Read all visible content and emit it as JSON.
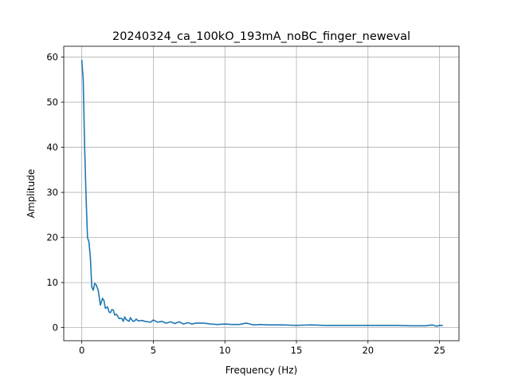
{
  "chart_data": {
    "type": "line",
    "title": "20240324_ca_100kO_193mA_noBC_finger_neweval",
    "xlabel": "Frequency (Hz)",
    "ylabel": "Amplitude",
    "xlim": [
      -1.26,
      26.36
    ],
    "ylim": [
      -2.9,
      62.4
    ],
    "xticks": [
      0,
      5,
      10,
      15,
      20,
      25
    ],
    "yticks": [
      0,
      10,
      20,
      30,
      40,
      50,
      60
    ],
    "grid": true,
    "colors": {
      "line": "#1f77b4",
      "grid": "#b0b0b0"
    },
    "series": [
      {
        "x": [
          0.0,
          0.1,
          0.2,
          0.3,
          0.4,
          0.5,
          0.6,
          0.7,
          0.8,
          0.9,
          1.0,
          1.15,
          1.3,
          1.45,
          1.55,
          1.65,
          1.8,
          1.9,
          2.0,
          2.1,
          2.2,
          2.3,
          2.4,
          2.5,
          2.6,
          2.7,
          2.8,
          2.9,
          3.0,
          3.1,
          3.2,
          3.3,
          3.4,
          3.5,
          3.6,
          3.7,
          3.8,
          3.9,
          4.0,
          4.2,
          4.4,
          4.6,
          4.8,
          5.0,
          5.3,
          5.6,
          5.9,
          6.2,
          6.5,
          6.8,
          7.1,
          7.4,
          7.7,
          8.0,
          8.5,
          9.0,
          9.5,
          10.0,
          10.5,
          11.0,
          11.5,
          12.0,
          12.5,
          13.0,
          14.0,
          15.0,
          16.0,
          17.0,
          18.0,
          19.0,
          20.0,
          21.0,
          22.0,
          23.0,
          24.0,
          24.5,
          24.8,
          25.0,
          25.2
        ],
        "y": [
          59.3,
          55.0,
          40.0,
          29.0,
          20.0,
          19.0,
          15.5,
          9.0,
          8.3,
          9.8,
          9.5,
          8.3,
          5.0,
          6.5,
          6.0,
          4.3,
          4.6,
          3.5,
          3.3,
          4.0,
          3.9,
          2.8,
          3.0,
          2.6,
          2.0,
          2.1,
          2.0,
          1.4,
          2.4,
          1.8,
          1.6,
          1.4,
          2.2,
          1.7,
          1.4,
          1.5,
          1.9,
          1.6,
          1.5,
          1.6,
          1.4,
          1.3,
          1.2,
          1.7,
          1.2,
          1.4,
          1.0,
          1.3,
          0.9,
          1.3,
          0.8,
          1.1,
          0.8,
          1.0,
          1.0,
          0.8,
          0.7,
          0.8,
          0.7,
          0.7,
          1.0,
          0.6,
          0.7,
          0.6,
          0.6,
          0.5,
          0.6,
          0.5,
          0.5,
          0.5,
          0.5,
          0.5,
          0.5,
          0.4,
          0.4,
          0.6,
          0.3,
          0.5,
          0.5
        ]
      }
    ]
  }
}
